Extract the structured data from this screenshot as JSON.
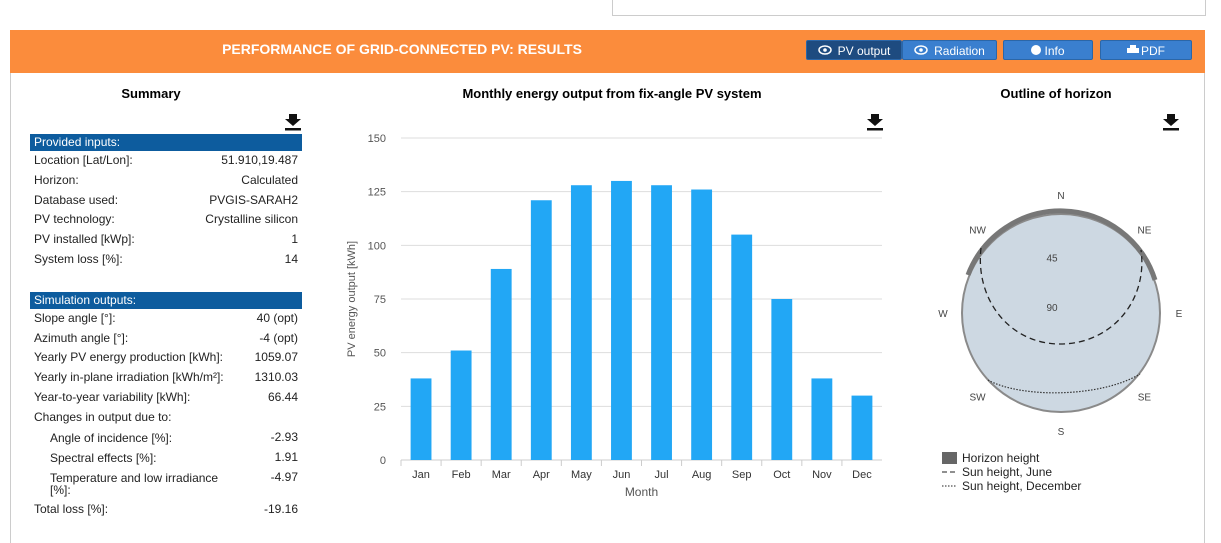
{
  "header": {
    "title": "PERFORMANCE OF GRID-CONNECTED PV: RESULTS",
    "buttons": [
      "PV output",
      "Radiation",
      "Info",
      "PDF"
    ]
  },
  "summary": {
    "title": "Summary",
    "sections": [
      {
        "header": "Provided inputs:",
        "rows": [
          {
            "label": "Location [Lat/Lon]:",
            "value": "51.910,19.487"
          },
          {
            "label": "Horizon:",
            "value": "Calculated"
          },
          {
            "label": "Database used:",
            "value": "PVGIS-SARAH2"
          },
          {
            "label": "PV technology:",
            "value": "Crystalline silicon"
          },
          {
            "label": "PV installed [kWp]:",
            "value": "1"
          },
          {
            "label": "System loss [%]:",
            "value": "14"
          }
        ]
      },
      {
        "header": "Simulation outputs:",
        "rows": [
          {
            "label": "Slope angle [°]:",
            "value": "40 (opt)"
          },
          {
            "label": "Azimuth angle [°]:",
            "value": "-4 (opt)"
          },
          {
            "label": "Yearly PV energy production [kWh]:",
            "value": "1059.07"
          },
          {
            "label": "Yearly in-plane irradiation [kWh/m²]:",
            "value": "1310.03"
          },
          {
            "label": "Year-to-year variability [kWh]:",
            "value": "66.44"
          },
          {
            "label": "Changes in output due to:",
            "rows": [
              {
                "label": "Angle of incidence [%]:",
                "value": "-2.93"
              },
              {
                "label": "Spectral effects [%]:",
                "value": "1.91"
              },
              {
                "label": "Temperature and low irradiance [%]:",
                "value": "-4.97"
              }
            ]
          },
          {
            "label": "Total loss [%]:",
            "value": "-19.16"
          }
        ]
      }
    ]
  },
  "chart_data": {
    "type": "bar",
    "title": "Monthly energy output from fix-angle PV system",
    "x_label": "Month",
    "y_label": "PV energy output [kWh]",
    "categories": [
      "Jan",
      "Feb",
      "Mar",
      "Apr",
      "May",
      "Jun",
      "Jul",
      "Aug",
      "Sep",
      "Oct",
      "Nov",
      "Dec"
    ],
    "values": [
      38,
      51,
      89,
      121,
      128,
      130,
      128,
      126,
      105,
      75,
      38,
      30
    ],
    "color": "#22a7f5",
    "ylim": [
      0,
      150
    ],
    "yticks": [
      0,
      25,
      50,
      75,
      100,
      125,
      150
    ],
    "grid": true
  },
  "horizon": {
    "title": "Outline of horizon",
    "directions": [
      "N",
      "NE",
      "E",
      "SE",
      "S",
      "SW",
      "W",
      "NW"
    ],
    "rlim": [
      90,
      0
    ],
    "rticks": [
      45,
      90
    ],
    "legend": [
      "Horizon height",
      "Sun height, June",
      "Sun height, December"
    ]
  }
}
